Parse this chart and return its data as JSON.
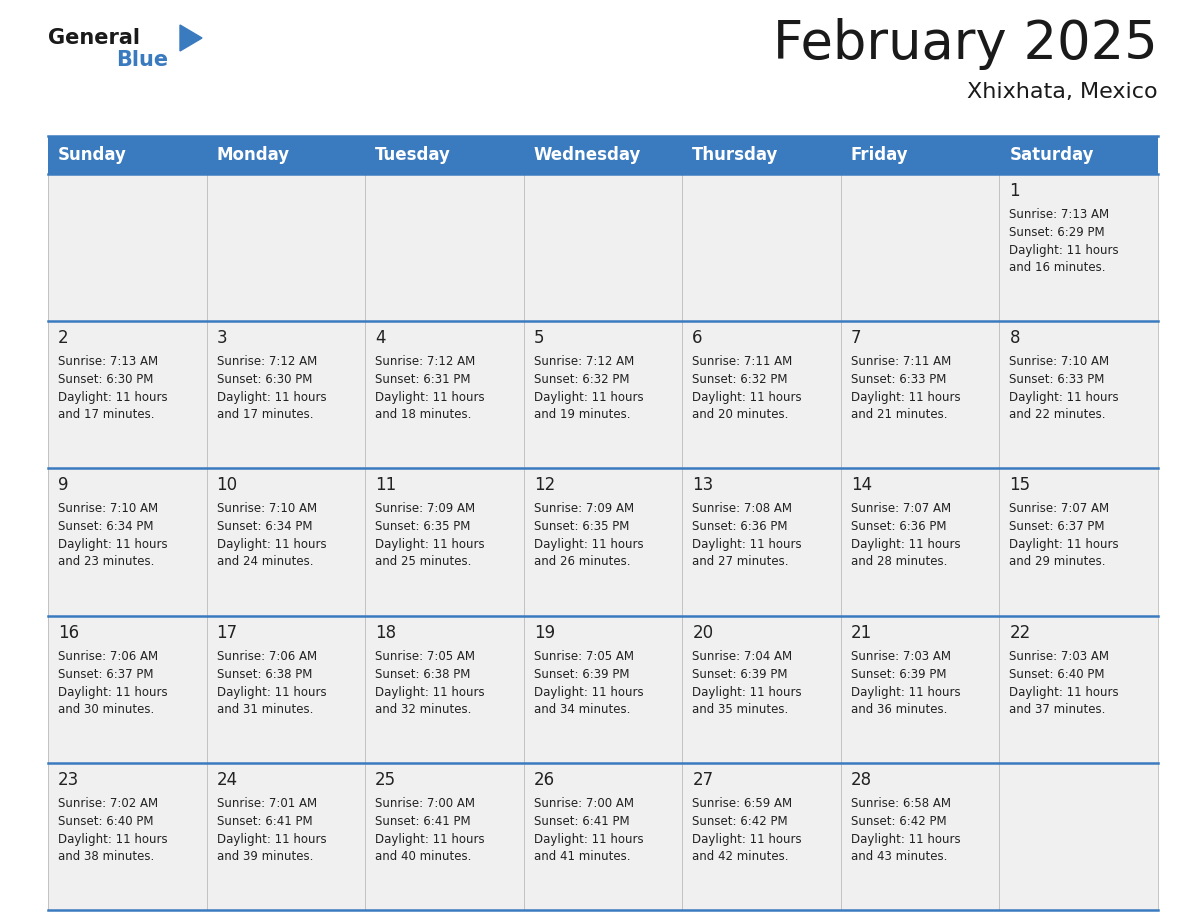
{
  "title": "February 2025",
  "subtitle": "Xhixhata, Mexico",
  "header_bg": "#3a7abf",
  "header_text_color": "#ffffff",
  "day_names": [
    "Sunday",
    "Monday",
    "Tuesday",
    "Wednesday",
    "Thursday",
    "Friday",
    "Saturday"
  ],
  "cell_bg": "#f0f0f0",
  "border_color": "#3a7abf",
  "text_color": "#222222",
  "days": [
    {
      "day": 1,
      "col": 6,
      "row": 0,
      "sunrise": "7:13 AM",
      "sunset": "6:29 PM",
      "daylight": "11 hours and 16 minutes."
    },
    {
      "day": 2,
      "col": 0,
      "row": 1,
      "sunrise": "7:13 AM",
      "sunset": "6:30 PM",
      "daylight": "11 hours and 17 minutes."
    },
    {
      "day": 3,
      "col": 1,
      "row": 1,
      "sunrise": "7:12 AM",
      "sunset": "6:30 PM",
      "daylight": "11 hours and 17 minutes."
    },
    {
      "day": 4,
      "col": 2,
      "row": 1,
      "sunrise": "7:12 AM",
      "sunset": "6:31 PM",
      "daylight": "11 hours and 18 minutes."
    },
    {
      "day": 5,
      "col": 3,
      "row": 1,
      "sunrise": "7:12 AM",
      "sunset": "6:32 PM",
      "daylight": "11 hours and 19 minutes."
    },
    {
      "day": 6,
      "col": 4,
      "row": 1,
      "sunrise": "7:11 AM",
      "sunset": "6:32 PM",
      "daylight": "11 hours and 20 minutes."
    },
    {
      "day": 7,
      "col": 5,
      "row": 1,
      "sunrise": "7:11 AM",
      "sunset": "6:33 PM",
      "daylight": "11 hours and 21 minutes."
    },
    {
      "day": 8,
      "col": 6,
      "row": 1,
      "sunrise": "7:10 AM",
      "sunset": "6:33 PM",
      "daylight": "11 hours and 22 minutes."
    },
    {
      "day": 9,
      "col": 0,
      "row": 2,
      "sunrise": "7:10 AM",
      "sunset": "6:34 PM",
      "daylight": "11 hours and 23 minutes."
    },
    {
      "day": 10,
      "col": 1,
      "row": 2,
      "sunrise": "7:10 AM",
      "sunset": "6:34 PM",
      "daylight": "11 hours and 24 minutes."
    },
    {
      "day": 11,
      "col": 2,
      "row": 2,
      "sunrise": "7:09 AM",
      "sunset": "6:35 PM",
      "daylight": "11 hours and 25 minutes."
    },
    {
      "day": 12,
      "col": 3,
      "row": 2,
      "sunrise": "7:09 AM",
      "sunset": "6:35 PM",
      "daylight": "11 hours and 26 minutes."
    },
    {
      "day": 13,
      "col": 4,
      "row": 2,
      "sunrise": "7:08 AM",
      "sunset": "6:36 PM",
      "daylight": "11 hours and 27 minutes."
    },
    {
      "day": 14,
      "col": 5,
      "row": 2,
      "sunrise": "7:07 AM",
      "sunset": "6:36 PM",
      "daylight": "11 hours and 28 minutes."
    },
    {
      "day": 15,
      "col": 6,
      "row": 2,
      "sunrise": "7:07 AM",
      "sunset": "6:37 PM",
      "daylight": "11 hours and 29 minutes."
    },
    {
      "day": 16,
      "col": 0,
      "row": 3,
      "sunrise": "7:06 AM",
      "sunset": "6:37 PM",
      "daylight": "11 hours and 30 minutes."
    },
    {
      "day": 17,
      "col": 1,
      "row": 3,
      "sunrise": "7:06 AM",
      "sunset": "6:38 PM",
      "daylight": "11 hours and 31 minutes."
    },
    {
      "day": 18,
      "col": 2,
      "row": 3,
      "sunrise": "7:05 AM",
      "sunset": "6:38 PM",
      "daylight": "11 hours and 32 minutes."
    },
    {
      "day": 19,
      "col": 3,
      "row": 3,
      "sunrise": "7:05 AM",
      "sunset": "6:39 PM",
      "daylight": "11 hours and 34 minutes."
    },
    {
      "day": 20,
      "col": 4,
      "row": 3,
      "sunrise": "7:04 AM",
      "sunset": "6:39 PM",
      "daylight": "11 hours and 35 minutes."
    },
    {
      "day": 21,
      "col": 5,
      "row": 3,
      "sunrise": "7:03 AM",
      "sunset": "6:39 PM",
      "daylight": "11 hours and 36 minutes."
    },
    {
      "day": 22,
      "col": 6,
      "row": 3,
      "sunrise": "7:03 AM",
      "sunset": "6:40 PM",
      "daylight": "11 hours and 37 minutes."
    },
    {
      "day": 23,
      "col": 0,
      "row": 4,
      "sunrise": "7:02 AM",
      "sunset": "6:40 PM",
      "daylight": "11 hours and 38 minutes."
    },
    {
      "day": 24,
      "col": 1,
      "row": 4,
      "sunrise": "7:01 AM",
      "sunset": "6:41 PM",
      "daylight": "11 hours and 39 minutes."
    },
    {
      "day": 25,
      "col": 2,
      "row": 4,
      "sunrise": "7:00 AM",
      "sunset": "6:41 PM",
      "daylight": "11 hours and 40 minutes."
    },
    {
      "day": 26,
      "col": 3,
      "row": 4,
      "sunrise": "7:00 AM",
      "sunset": "6:41 PM",
      "daylight": "11 hours and 41 minutes."
    },
    {
      "day": 27,
      "col": 4,
      "row": 4,
      "sunrise": "6:59 AM",
      "sunset": "6:42 PM",
      "daylight": "11 hours and 42 minutes."
    },
    {
      "day": 28,
      "col": 5,
      "row": 4,
      "sunrise": "6:58 AM",
      "sunset": "6:42 PM",
      "daylight": "11 hours and 43 minutes."
    }
  ],
  "num_rows": 5,
  "num_cols": 7
}
